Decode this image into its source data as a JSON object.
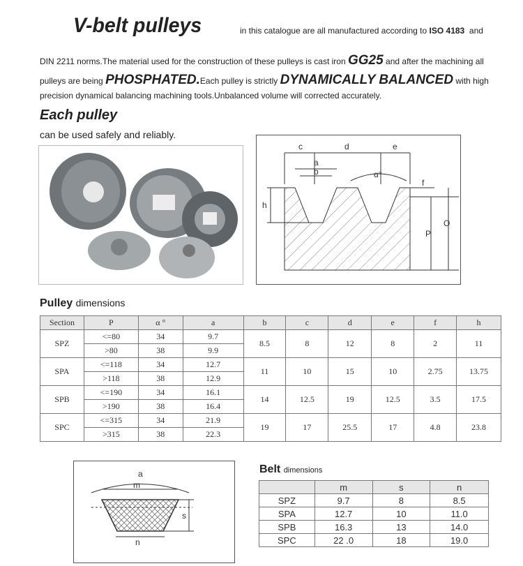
{
  "intro": {
    "title": "V-belt pulleys",
    "line1": "in this catalogue are all manufactured according to",
    "iso": "ISO 4183",
    "line1_end": "and",
    "line2a": "DIN  2211 norms.The material used for the construction of these pulleys is cast iron",
    "gg25": "GG25",
    "line2b": "and after the machining all",
    "line3a": "pulleys are being",
    "phosphated": "PHOSPHATED.",
    "line3b": "Each pulley is strictly",
    "balanced": "DYNAMICALLY BALANCED",
    "line3c": "with high",
    "line4": "precision dynamical balancing machining tools.Unbalanced volume will corrected accurately."
  },
  "each": {
    "title": "Each pulley",
    "subtitle": "can be used safely and reliably."
  },
  "groove_diagram": {
    "labels": {
      "c": "c",
      "d": "d",
      "e": "e",
      "a": "a",
      "b": "b",
      "alpha": "α°",
      "f": "f",
      "h": "h",
      "P": "P",
      "O": "O"
    }
  },
  "pulley_table": {
    "title_bold": "Pulley",
    "title_rest": "dimensions",
    "headers": [
      "Section",
      "P",
      "α °",
      "a",
      "b",
      "c",
      "d",
      "e",
      "f",
      "h"
    ],
    "groups": [
      {
        "section": "SPZ",
        "rows": [
          [
            "<=80",
            "34",
            "9.7"
          ],
          [
            ">80",
            "38",
            "9.9"
          ]
        ],
        "b": "8.5",
        "c": "8",
        "d": "12",
        "e": "8",
        "f": "2",
        "h": "11"
      },
      {
        "section": "SPA",
        "rows": [
          [
            "<=118",
            "34",
            "12.7"
          ],
          [
            ">118",
            "38",
            "12.9"
          ]
        ],
        "b": "11",
        "c": "10",
        "d": "15",
        "e": "10",
        "f": "2.75",
        "h": "13.75"
      },
      {
        "section": "SPB",
        "rows": [
          [
            "<=190",
            "34",
            "16.1"
          ],
          [
            ">190",
            "38",
            "16.4"
          ]
        ],
        "b": "14",
        "c": "12.5",
        "d": "19",
        "e": "12.5",
        "f": "3.5",
        "h": "17.5"
      },
      {
        "section": "SPC",
        "rows": [
          [
            "<=315",
            "34",
            "21.9"
          ],
          [
            ">315",
            "38",
            "22.3"
          ]
        ],
        "b": "19",
        "c": "17",
        "d": "25.5",
        "e": "17",
        "f": "4.8",
        "h": "23.8"
      }
    ]
  },
  "belt_diagram": {
    "labels": {
      "a": "a",
      "m": "m",
      "s": "s",
      "n": "n"
    }
  },
  "belt_table": {
    "title_bold": "Belt",
    "title_rest": "dimensions",
    "headers": [
      "",
      "m",
      "s",
      "n"
    ],
    "rows": [
      [
        "SPZ",
        "9.7",
        "8",
        "8.5"
      ],
      [
        "SPA",
        "12.7",
        "10",
        "11.0"
      ],
      [
        "SPB",
        "16.3",
        "13",
        "14.0"
      ],
      [
        "SPC",
        "22 .0",
        "18",
        "19.0"
      ]
    ]
  }
}
